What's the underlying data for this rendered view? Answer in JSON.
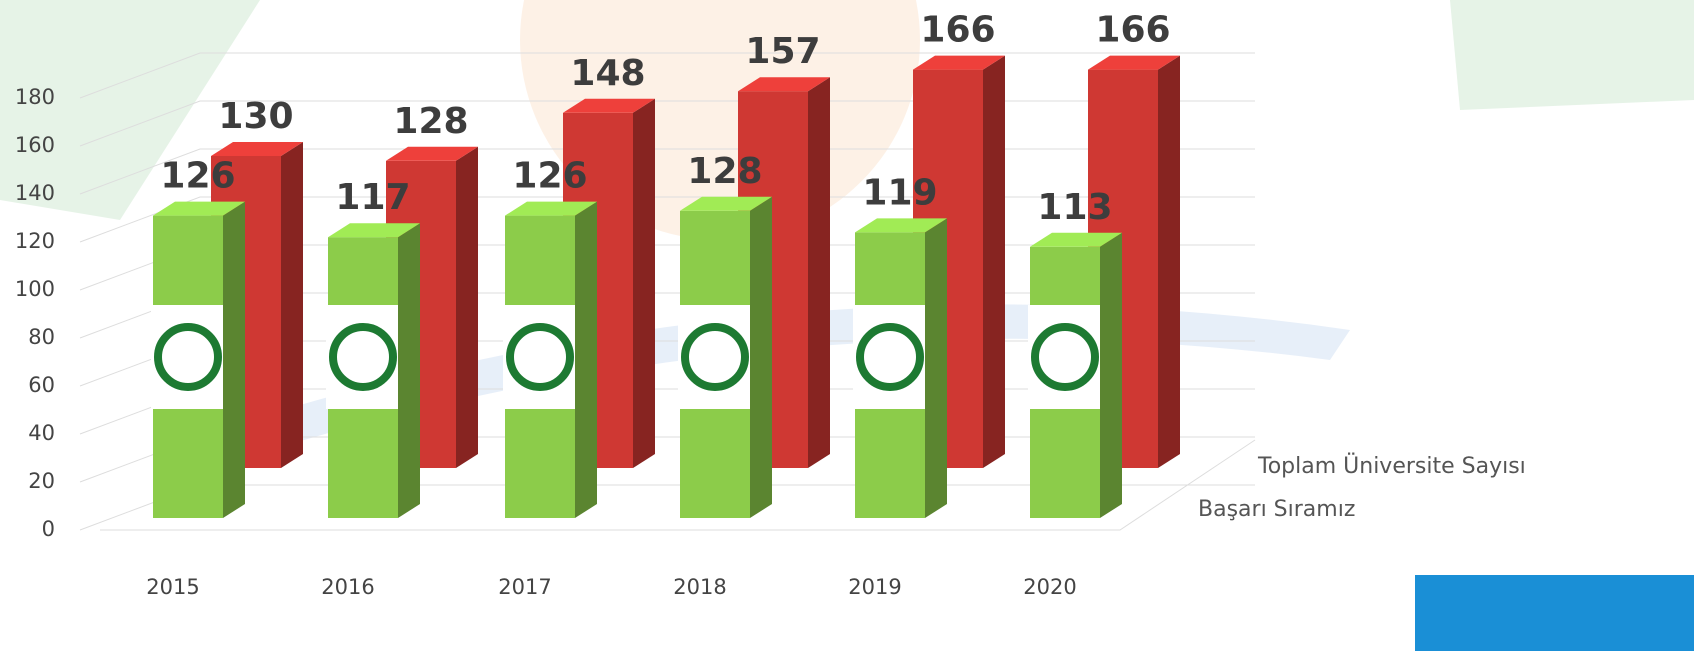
{
  "chart_data": {
    "type": "bar3d",
    "categories": [
      "2015",
      "2016",
      "2017",
      "2018",
      "2019",
      "2020"
    ],
    "series": [
      {
        "name": "Başarı Sıramız",
        "color": "#8ccc4a",
        "values": [
          126,
          117,
          126,
          128,
          119,
          113
        ]
      },
      {
        "name": "Toplam Üniversite Sayısı",
        "color": "#cf3833",
        "values": [
          130,
          128,
          148,
          157,
          166,
          166
        ]
      }
    ],
    "ylim": [
      0,
      200
    ],
    "yticks": [
      0,
      20,
      40,
      60,
      80,
      100,
      120,
      140,
      160,
      180
    ],
    "grid": true
  }
}
